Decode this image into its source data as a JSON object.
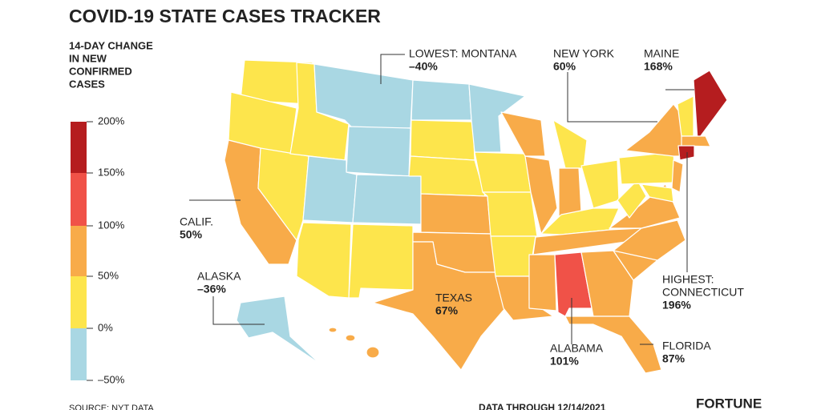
{
  "title": "COVID-19 STATE CASES TRACKER",
  "legend": {
    "title_lines": [
      "14-DAY CHANGE",
      "IN NEW",
      "CONFIRMED",
      "CASES"
    ],
    "ticks": [
      "200%",
      "150%",
      "100%",
      "50%",
      "0%",
      "–50%"
    ]
  },
  "annotations": [
    {
      "lines": [
        "LOWEST: MONTANA"
      ],
      "value": "–40%"
    },
    {
      "lines": [
        "NEW YORK"
      ],
      "value": "60%"
    },
    {
      "lines": [
        "MAINE"
      ],
      "value": "168%"
    },
    {
      "lines": [
        "CALIF."
      ],
      "value": "50%"
    },
    {
      "lines": [
        "ALASKA"
      ],
      "value": "–36%"
    },
    {
      "lines": [
        "TEXAS"
      ],
      "value": "67%"
    },
    {
      "lines": [
        "HIGHEST:",
        "CONNECTICUT"
      ],
      "value": "196%"
    },
    {
      "lines": [
        "ALABAMA"
      ],
      "value": "101%"
    },
    {
      "lines": [
        "FLORIDA"
      ],
      "value": "87%"
    }
  ],
  "footer": {
    "source": "SOURCE: NYT DATA",
    "date": "DATA THROUGH 12/14/2021",
    "brand": "FORTUNE"
  }
}
